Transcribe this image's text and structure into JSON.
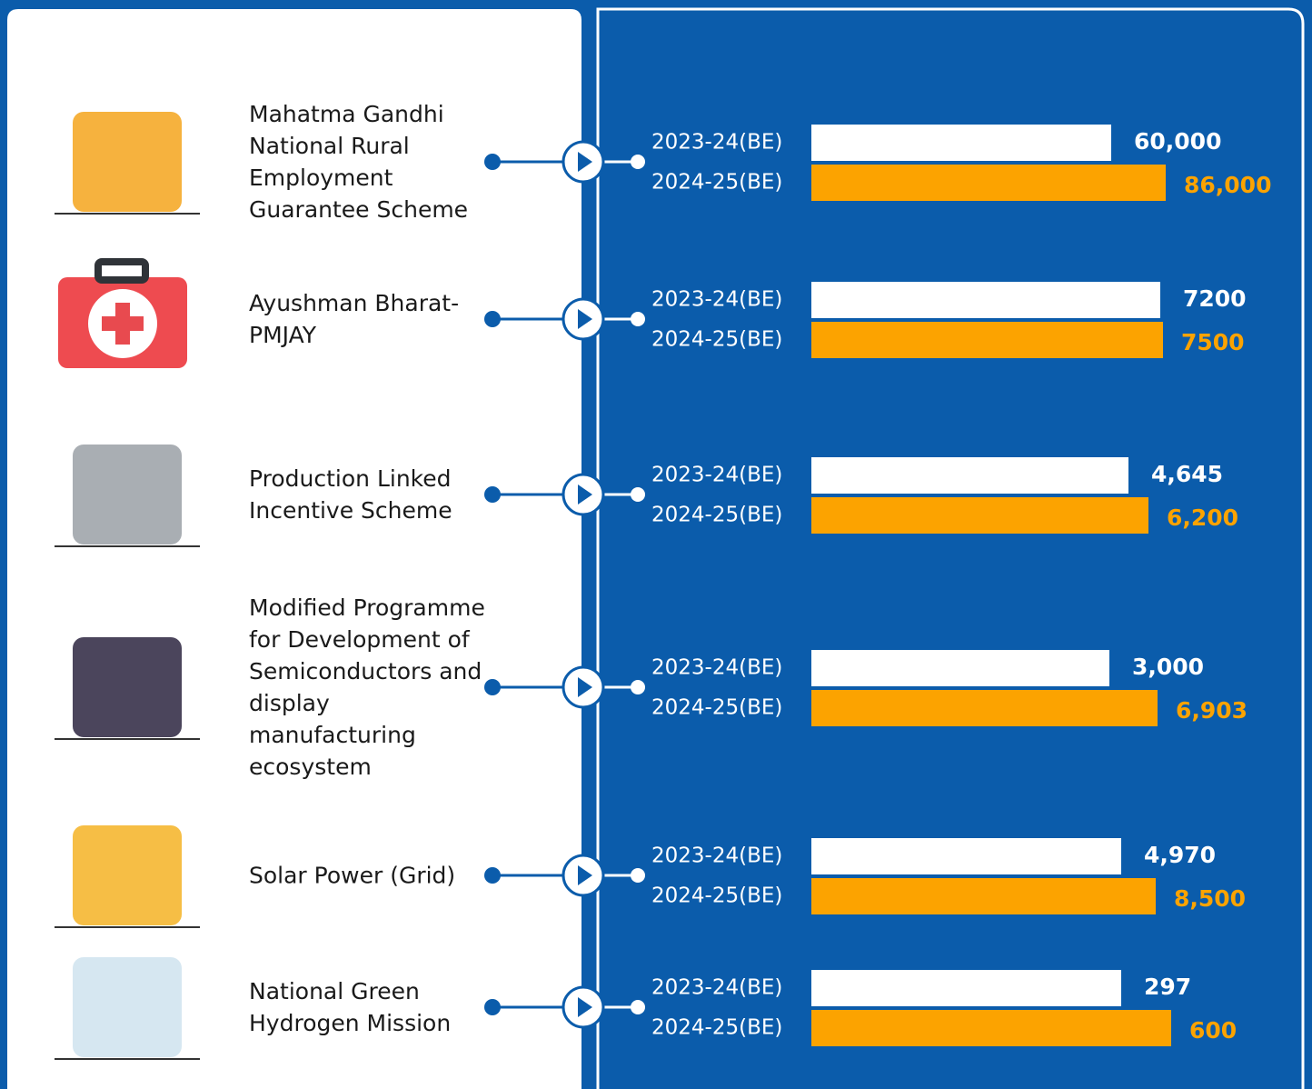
{
  "schemes": [
    {
      "name": "Mahatma Gandhi National Rural Employment Guarantee Scheme",
      "rows": [
        {
          "label": "2023-24(BE)",
          "value": "60,000"
        },
        {
          "label": "2024-25(BE)",
          "value": "86,000"
        }
      ]
    },
    {
      "name": "Ayushman Bharat-PMJAY",
      "rows": [
        {
          "label": "2023-24(BE)",
          "value": "7200"
        },
        {
          "label": "2024-25(BE)",
          "value": "7500"
        }
      ]
    },
    {
      "name": "Production Linked Incentive Scheme",
      "rows": [
        {
          "label": "2023-24(BE)",
          "value": "4,645"
        },
        {
          "label": "2024-25(BE)",
          "value": "6,200"
        }
      ]
    },
    {
      "name": "Modified Programme for Development of Semiconductors and display manufacturing ecosystem",
      "rows": [
        {
          "label": "2023-24(BE)",
          "value": "3,000"
        },
        {
          "label": "2024-25(BE)",
          "value": "6,903"
        }
      ]
    },
    {
      "name": "Solar Power (Grid)",
      "rows": [
        {
          "label": "2023-24(BE)",
          "value": "4,970"
        },
        {
          "label": "2024-25(BE)",
          "value": "8,500"
        }
      ]
    },
    {
      "name": "National Green Hydrogen Mission",
      "rows": [
        {
          "label": "2023-24(BE)",
          "value": "297"
        },
        {
          "label": "2024-25(BE)",
          "value": "600"
        }
      ]
    }
  ]
}
